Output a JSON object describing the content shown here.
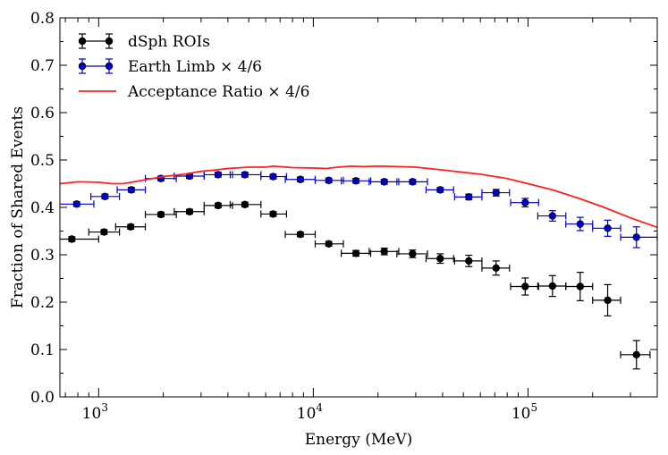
{
  "chart_data": {
    "type": "scatter",
    "title": "",
    "xlabel": "Energy (MeV)",
    "ylabel": "Fraction of Shared Events",
    "xscale": "log",
    "xlim": [
      660,
      400000
    ],
    "ylim": [
      0,
      0.8
    ],
    "yticks": [
      0.0,
      0.1,
      0.2,
      0.3,
      0.4,
      0.5,
      0.6,
      0.7,
      0.8
    ],
    "ytick_labels": [
      "0.0",
      "0.1",
      "0.2",
      "0.3",
      "0.4",
      "0.5",
      "0.6",
      "0.7",
      "0.8"
    ],
    "xticks": [
      {
        "value": 1000,
        "base": "10",
        "exp": "3"
      },
      {
        "value": 10000,
        "base": "10",
        "exp": "4"
      },
      {
        "value": 100000,
        "base": "10",
        "exp": "5"
      }
    ],
    "legend_position": "top-left",
    "series": [
      {
        "name": "dSph ROIs",
        "color": "#000000",
        "style": "errorbar",
        "points": [
          {
            "x": 750,
            "xlo": 562,
            "xhi": 1000,
            "y": 0.333,
            "yerr": 0.005
          },
          {
            "x": 1060,
            "xlo": 900,
            "xhi": 1250,
            "y": 0.348,
            "yerr": 0.005
          },
          {
            "x": 1410,
            "xlo": 1200,
            "xhi": 1650,
            "y": 0.359,
            "yerr": 0.005
          },
          {
            "x": 1950,
            "xlo": 1650,
            "xhi": 2300,
            "y": 0.385,
            "yerr": 0.005
          },
          {
            "x": 2650,
            "xlo": 2250,
            "xhi": 3100,
            "y": 0.391,
            "yerr": 0.005
          },
          {
            "x": 3600,
            "xlo": 3100,
            "xhi": 4200,
            "y": 0.404,
            "yerr": 0.005
          },
          {
            "x": 4800,
            "xlo": 4100,
            "xhi": 5700,
            "y": 0.406,
            "yerr": 0.005
          },
          {
            "x": 6500,
            "xlo": 5700,
            "xhi": 7500,
            "y": 0.386,
            "yerr": 0.005
          },
          {
            "x": 8700,
            "xlo": 7400,
            "xhi": 10200,
            "y": 0.343,
            "yerr": 0.005
          },
          {
            "x": 11800,
            "xlo": 10200,
            "xhi": 13800,
            "y": 0.323,
            "yerr": 0.005
          },
          {
            "x": 15800,
            "xlo": 13500,
            "xhi": 18500,
            "y": 0.303,
            "yerr": 0.006
          },
          {
            "x": 21400,
            "xlo": 18200,
            "xhi": 25000,
            "y": 0.307,
            "yerr": 0.007
          },
          {
            "x": 29000,
            "xlo": 24500,
            "xhi": 34000,
            "y": 0.302,
            "yerr": 0.008
          },
          {
            "x": 39000,
            "xlo": 33500,
            "xhi": 45000,
            "y": 0.292,
            "yerr": 0.01
          },
          {
            "x": 53000,
            "xlo": 45500,
            "xhi": 61000,
            "y": 0.287,
            "yerr": 0.012
          },
          {
            "x": 71000,
            "xlo": 61000,
            "xhi": 82000,
            "y": 0.272,
            "yerr": 0.015
          },
          {
            "x": 97000,
            "xlo": 83000,
            "xhi": 112000,
            "y": 0.233,
            "yerr": 0.018
          },
          {
            "x": 130000,
            "xlo": 111000,
            "xhi": 150000,
            "y": 0.234,
            "yerr": 0.022
          },
          {
            "x": 175000,
            "xlo": 150000,
            "xhi": 200000,
            "y": 0.233,
            "yerr": 0.03
          },
          {
            "x": 235000,
            "xlo": 200000,
            "xhi": 270000,
            "y": 0.204,
            "yerr": 0.033
          },
          {
            "x": 320000,
            "xlo": 270000,
            "xhi": 370000,
            "y": 0.089,
            "yerr": 0.03
          }
        ]
      },
      {
        "name": "Earth Limb × 4/6",
        "color": "#0000cc",
        "style": "errorbar",
        "points": [
          {
            "x": 790,
            "xlo": 640,
            "xhi": 950,
            "y": 0.407,
            "yerr": 0.005
          },
          {
            "x": 1070,
            "xlo": 920,
            "xhi": 1250,
            "y": 0.423,
            "yerr": 0.005
          },
          {
            "x": 1420,
            "xlo": 1220,
            "xhi": 1650,
            "y": 0.437,
            "yerr": 0.005
          },
          {
            "x": 1950,
            "xlo": 1650,
            "xhi": 2300,
            "y": 0.461,
            "yerr": 0.005
          },
          {
            "x": 2650,
            "xlo": 2250,
            "xhi": 3100,
            "y": 0.466,
            "yerr": 0.005
          },
          {
            "x": 3600,
            "xlo": 3100,
            "xhi": 4200,
            "y": 0.469,
            "yerr": 0.005
          },
          {
            "x": 4800,
            "xlo": 4100,
            "xhi": 5700,
            "y": 0.469,
            "yerr": 0.005
          },
          {
            "x": 6500,
            "xlo": 5700,
            "xhi": 7500,
            "y": 0.465,
            "yerr": 0.005
          },
          {
            "x": 8700,
            "xlo": 7400,
            "xhi": 10200,
            "y": 0.459,
            "yerr": 0.005
          },
          {
            "x": 11800,
            "xlo": 10200,
            "xhi": 13800,
            "y": 0.457,
            "yerr": 0.005
          },
          {
            "x": 15800,
            "xlo": 13500,
            "xhi": 18500,
            "y": 0.456,
            "yerr": 0.005
          },
          {
            "x": 21400,
            "xlo": 18200,
            "xhi": 25000,
            "y": 0.454,
            "yerr": 0.005
          },
          {
            "x": 29000,
            "xlo": 24500,
            "xhi": 34000,
            "y": 0.454,
            "yerr": 0.005
          },
          {
            "x": 39000,
            "xlo": 33500,
            "xhi": 45000,
            "y": 0.437,
            "yerr": 0.005
          },
          {
            "x": 53000,
            "xlo": 45500,
            "xhi": 61000,
            "y": 0.422,
            "yerr": 0.006
          },
          {
            "x": 71000,
            "xlo": 61000,
            "xhi": 82000,
            "y": 0.431,
            "yerr": 0.007
          },
          {
            "x": 97000,
            "xlo": 83000,
            "xhi": 112000,
            "y": 0.41,
            "yerr": 0.009
          },
          {
            "x": 130000,
            "xlo": 111000,
            "xhi": 150000,
            "y": 0.382,
            "yerr": 0.011
          },
          {
            "x": 175000,
            "xlo": 150000,
            "xhi": 200000,
            "y": 0.365,
            "yerr": 0.014
          },
          {
            "x": 235000,
            "xlo": 200000,
            "xhi": 270000,
            "y": 0.356,
            "yerr": 0.017
          },
          {
            "x": 320000,
            "xlo": 270000,
            "xhi": 400000,
            "y": 0.337,
            "yerr": 0.022
          }
        ]
      },
      {
        "name": "Acceptance Ratio × 4/6",
        "color": "#ff2020",
        "style": "line",
        "x": [
          660,
          800,
          1000,
          1150,
          1300,
          1500,
          2000,
          2500,
          3000,
          3500,
          4000,
          5000,
          6000,
          6500,
          8000,
          10000,
          11500,
          13000,
          15000,
          17000,
          20000,
          25000,
          30000,
          40000,
          50000,
          60000,
          80000,
          100000,
          130000,
          170000,
          220000,
          300000,
          400000
        ],
        "y": [
          0.45,
          0.454,
          0.453,
          0.45,
          0.45,
          0.455,
          0.465,
          0.47,
          0.476,
          0.479,
          0.482,
          0.485,
          0.485,
          0.487,
          0.484,
          0.483,
          0.482,
          0.485,
          0.487,
          0.486,
          0.487,
          0.486,
          0.485,
          0.479,
          0.474,
          0.47,
          0.461,
          0.45,
          0.437,
          0.42,
          0.402,
          0.378,
          0.358
        ]
      }
    ]
  }
}
